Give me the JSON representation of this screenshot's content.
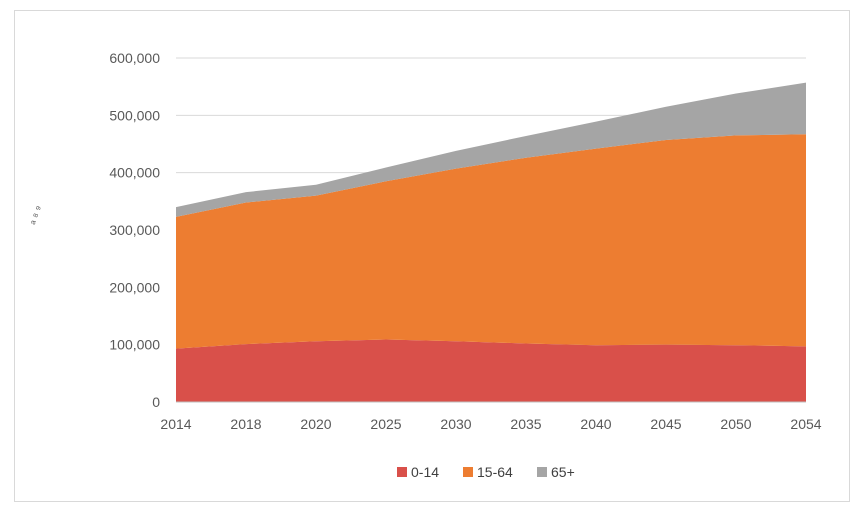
{
  "chart_data": {
    "type": "area",
    "stacked": true,
    "title": "",
    "xlabel": "",
    "ylabel": "",
    "categories": [
      "2014",
      "2018",
      "2020",
      "2025",
      "2030",
      "2035",
      "2040",
      "2045",
      "2050",
      "2054"
    ],
    "ylim": [
      0,
      600000
    ],
    "yticks": [
      0,
      100000,
      200000,
      300000,
      400000,
      500000,
      600000
    ],
    "ytick_labels": [
      "0",
      "100,000",
      "200,000",
      "300,000",
      "400,000",
      "500,000",
      "600,000"
    ],
    "grid": true,
    "legend_position": "bottom-center",
    "series": [
      {
        "name": "0-14",
        "color": "#d9504a",
        "values": [
          93000,
          101000,
          106000,
          109000,
          106000,
          102000,
          99000,
          100000,
          99000,
          97000
        ]
      },
      {
        "name": "15-64",
        "color": "#ed7d31",
        "values": [
          230000,
          247000,
          254000,
          276000,
          301000,
          324000,
          343000,
          357000,
          366000,
          370000
        ]
      },
      {
        "name": "65+",
        "color": "#a5a5a5",
        "values": [
          17000,
          18000,
          19000,
          24000,
          31000,
          38000,
          47000,
          58000,
          73000,
          90000
        ]
      }
    ]
  }
}
